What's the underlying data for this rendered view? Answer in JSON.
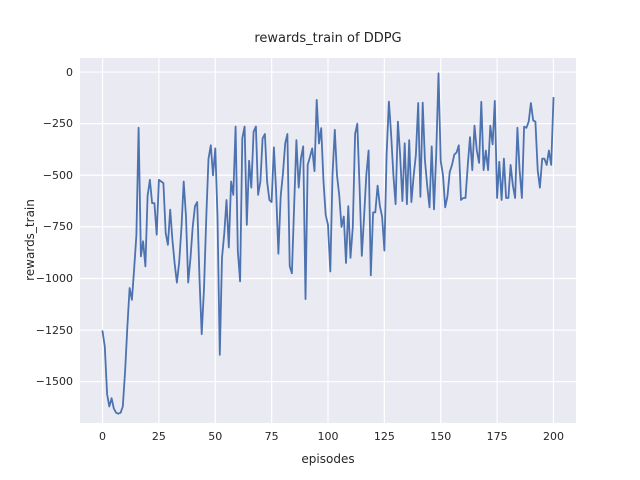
{
  "figure": {
    "title": "rewards_train of DDPG",
    "xlabel": "episodes",
    "ylabel": "rewards_train"
  },
  "chart_data": {
    "type": "line",
    "title": "rewards_train of DDPG",
    "xlabel": "episodes",
    "ylabel": "rewards_train",
    "x_start": 0,
    "x_step": 1,
    "xlim": [
      -10,
      210
    ],
    "ylim": [
      -1700,
      68
    ],
    "xticks": [
      0,
      25,
      50,
      75,
      100,
      125,
      150,
      175,
      200
    ],
    "yticks": [
      0,
      -250,
      -500,
      -750,
      -1000,
      -1250,
      -1500
    ],
    "xtick_labels": [
      "0",
      "25",
      "50",
      "75",
      "100",
      "125",
      "150",
      "175",
      "200"
    ],
    "ytick_labels": [
      "0",
      "−250",
      "−500",
      "−750",
      "−1000",
      "−1250",
      "−1500"
    ],
    "grid": true,
    "legend_position": "none",
    "line_color": "#4c72b0",
    "axes_bg": "#eaeaf2",
    "grid_color": "#ffffff",
    "values": [
      -1255,
      -1330,
      -1560,
      -1620,
      -1580,
      -1630,
      -1650,
      -1655,
      -1650,
      -1620,
      -1450,
      -1240,
      -1046,
      -1103,
      -957,
      -790,
      -270,
      -893,
      -820,
      -941,
      -600,
      -522,
      -635,
      -635,
      -788,
      -522,
      -530,
      -538,
      -780,
      -837,
      -667,
      -812,
      -930,
      -1020,
      -920,
      -750,
      -530,
      -700,
      -1020,
      -900,
      -750,
      -650,
      -630,
      -1000,
      -1270,
      -1050,
      -700,
      -420,
      -355,
      -500,
      -370,
      -700,
      -1370,
      -900,
      -780,
      -620,
      -850,
      -530,
      -595,
      -264,
      -866,
      -1014,
      -321,
      -264,
      -740,
      -430,
      -560,
      -289,
      -264,
      -595,
      -530,
      -321,
      -300,
      -530,
      -620,
      -630,
      -365,
      -575,
      -880,
      -600,
      -495,
      -345,
      -300,
      -940,
      -975,
      -640,
      -330,
      -560,
      -420,
      -360,
      -1100,
      -450,
      -410,
      -370,
      -480,
      -135,
      -346,
      -272,
      -530,
      -692,
      -740,
      -966,
      -500,
      -280,
      -500,
      -600,
      -750,
      -700,
      -925,
      -650,
      -900,
      -750,
      -300,
      -250,
      -560,
      -890,
      -700,
      -500,
      -380,
      -985,
      -680,
      -680,
      -550,
      -650,
      -700,
      -865,
      -400,
      -143,
      -300,
      -500,
      -640,
      -240,
      -400,
      -625,
      -345,
      -640,
      -330,
      -630,
      -500,
      -400,
      -150,
      -605,
      -148,
      -425,
      -550,
      -655,
      -360,
      -665,
      -400,
      -6,
      -430,
      -500,
      -655,
      -600,
      -485,
      -450,
      -400,
      -390,
      -355,
      -620,
      -610,
      -610,
      -450,
      -315,
      -475,
      -260,
      -380,
      -440,
      -144,
      -475,
      -380,
      -475,
      -260,
      -350,
      -140,
      -610,
      -435,
      -620,
      -420,
      -610,
      -610,
      -450,
      -550,
      -610,
      -270,
      -475,
      -610,
      -265,
      -270,
      -240,
      -150,
      -235,
      -240,
      -475,
      -560,
      -420,
      -420,
      -450,
      -380,
      -450,
      -125
    ]
  }
}
